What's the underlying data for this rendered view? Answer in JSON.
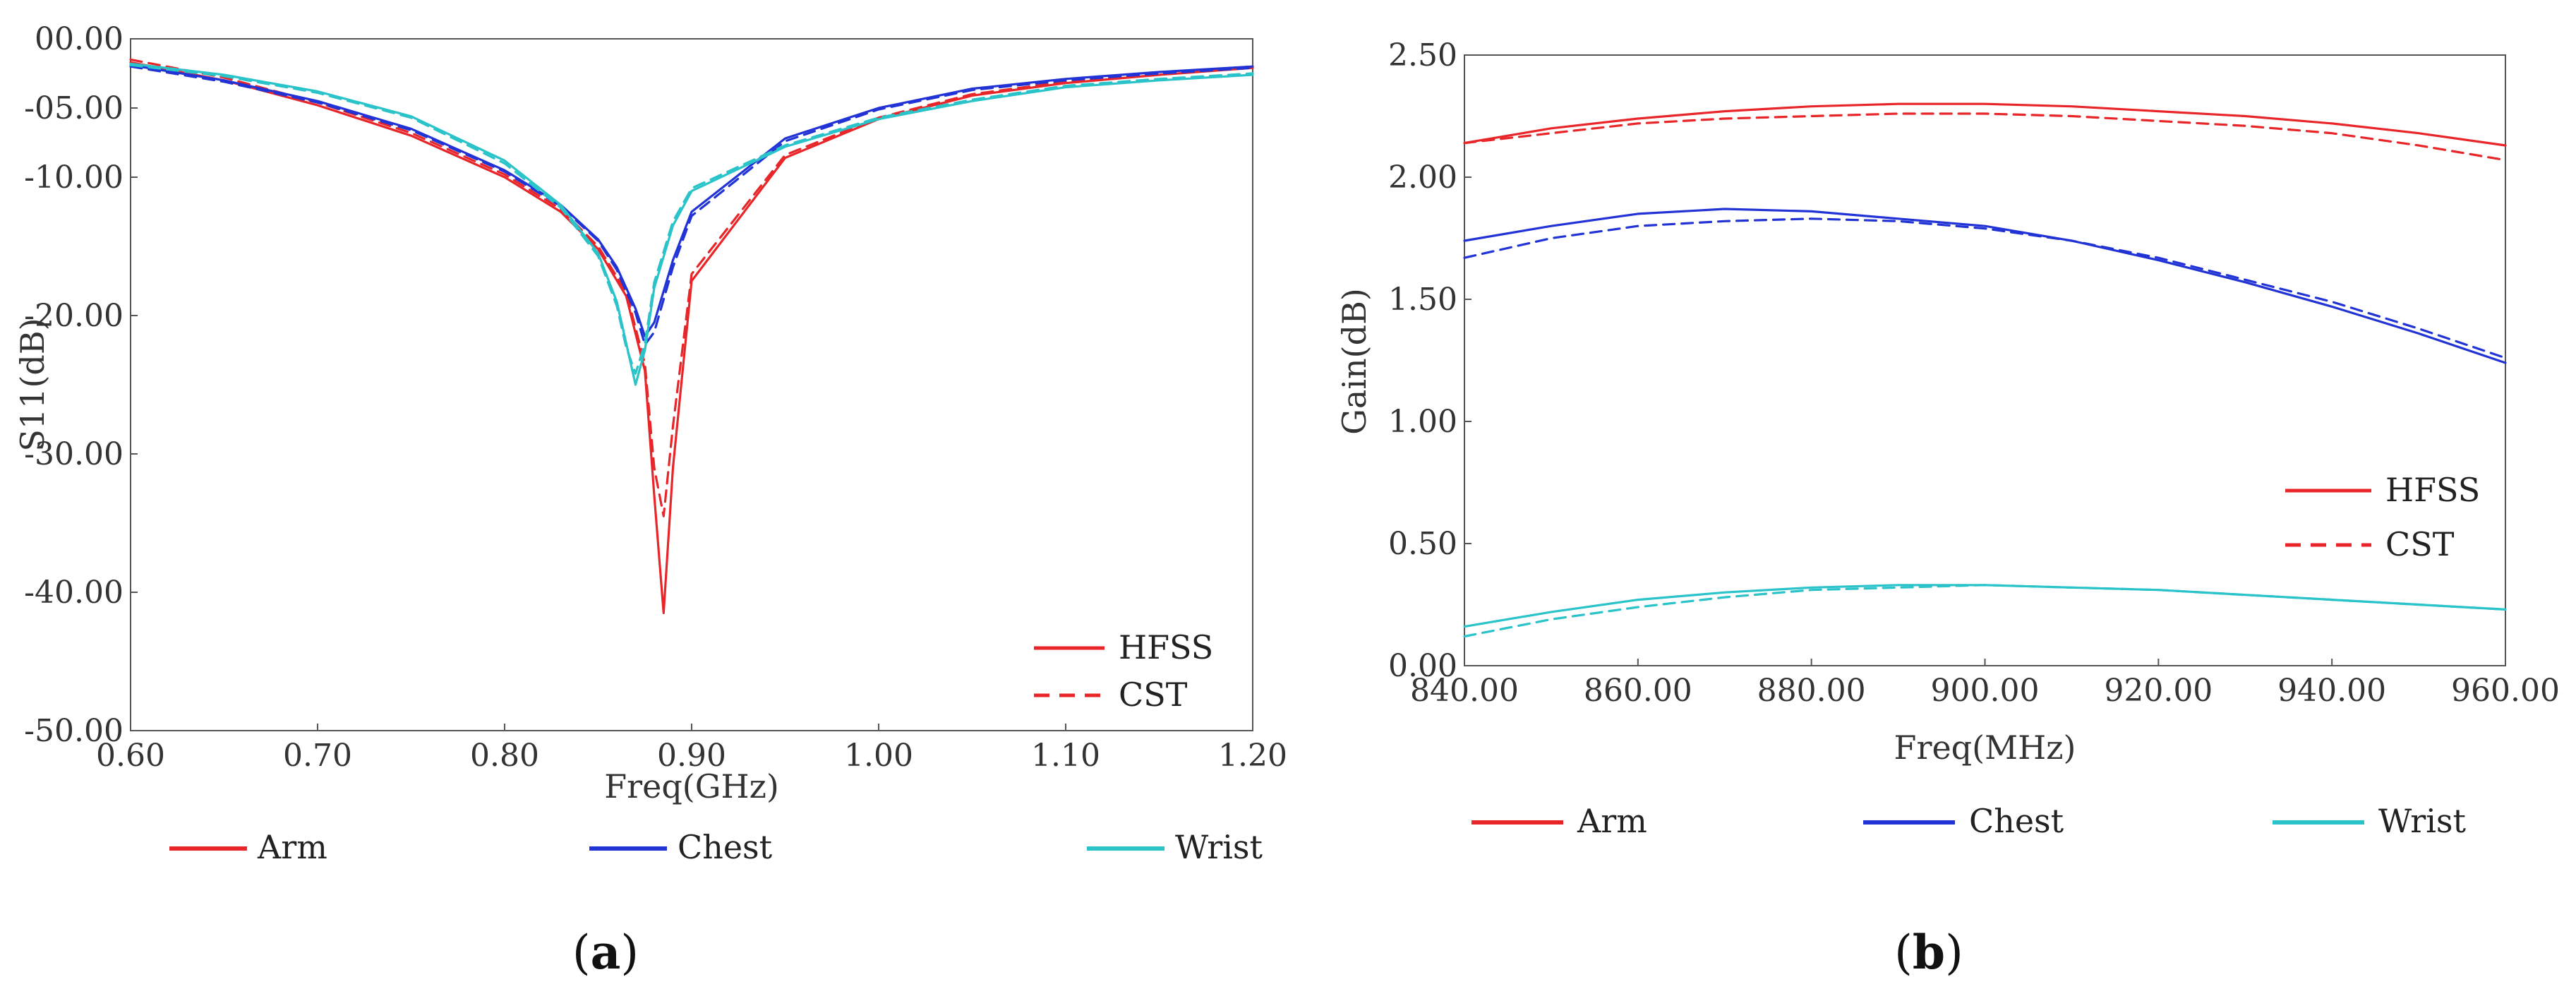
{
  "panels": [
    {
      "label": "a"
    },
    {
      "label": "b"
    }
  ],
  "styles": {
    "HFSS": "solid",
    "CST": "dashed"
  },
  "colors": {
    "Arm": "#e8262a",
    "Chest": "#2233d6",
    "Wrist": "#29c3c9",
    "axis": "#555555"
  },
  "chart_data": [
    {
      "type": "line",
      "panel": "a",
      "xlabel": "Freq(GHz)",
      "ylabel": "S11(dB)",
      "xlim": [
        0.6,
        1.2
      ],
      "ylim": [
        -50,
        0
      ],
      "xticks": [
        0.6,
        0.7,
        0.8,
        0.9,
        1.0,
        1.1,
        1.2
      ],
      "xtick_labels": [
        "0.60",
        "0.70",
        "0.80",
        "0.90",
        "1.00",
        "1.10",
        "1.20"
      ],
      "yticks": [
        0,
        -5,
        -10,
        -20,
        -30,
        -40,
        -50
      ],
      "ytick_labels": [
        "00.00",
        "-05.00",
        "-10.00",
        "-20.00",
        "-30.00",
        "-40.00",
        "-50.00"
      ],
      "style_legend": [
        "HFSS",
        "CST"
      ],
      "color_legend": [
        "Arm",
        "Chest",
        "Wrist"
      ],
      "series": [
        {
          "name": "Arm",
          "style": "HFSS",
          "x": [
            0.6,
            0.65,
            0.7,
            0.75,
            0.8,
            0.83,
            0.85,
            0.865,
            0.875,
            0.88,
            0.885,
            0.89,
            0.9,
            0.95,
            1.0,
            1.05,
            1.1,
            1.15,
            1.2
          ],
          "y": [
            -1.7,
            -3,
            -4.8,
            -7,
            -10,
            -12.5,
            -15.2,
            -18.6,
            -24,
            -33,
            -41.5,
            -31,
            -17.5,
            -8.6,
            -5.8,
            -4.1,
            -3.2,
            -2.6,
            -2.1
          ]
        },
        {
          "name": "Arm",
          "style": "CST",
          "x": [
            0.6,
            0.65,
            0.7,
            0.75,
            0.8,
            0.83,
            0.85,
            0.865,
            0.875,
            0.88,
            0.885,
            0.89,
            0.9,
            0.95,
            1.0,
            1.05,
            1.1,
            1.15,
            1.2
          ],
          "y": [
            -1.5,
            -2.8,
            -4.6,
            -6.8,
            -9.8,
            -12.3,
            -15,
            -18.3,
            -23.5,
            -31,
            -34.5,
            -28,
            -17,
            -8.4,
            -5.7,
            -4,
            -3.1,
            -2.5,
            -2
          ]
        },
        {
          "name": "Chest",
          "style": "HFSS",
          "x": [
            0.6,
            0.65,
            0.7,
            0.75,
            0.8,
            0.83,
            0.85,
            0.86,
            0.87,
            0.875,
            0.88,
            0.89,
            0.9,
            0.95,
            1.0,
            1.05,
            1.1,
            1.15,
            1.2
          ],
          "y": [
            -1.9,
            -3,
            -4.5,
            -6.5,
            -9.5,
            -12,
            -14.5,
            -16.5,
            -19.5,
            -21.5,
            -20.5,
            -16,
            -12.5,
            -7.2,
            -5,
            -3.6,
            -2.9,
            -2.4,
            -2
          ]
        },
        {
          "name": "Chest",
          "style": "CST",
          "x": [
            0.6,
            0.65,
            0.7,
            0.75,
            0.8,
            0.83,
            0.85,
            0.86,
            0.87,
            0.875,
            0.88,
            0.89,
            0.9,
            0.95,
            1.0,
            1.05,
            1.1,
            1.15,
            1.2
          ],
          "y": [
            -2,
            -3.1,
            -4.6,
            -6.6,
            -9.6,
            -12.1,
            -14.6,
            -16.7,
            -19.8,
            -22.1,
            -21.2,
            -16.5,
            -12.8,
            -7.4,
            -5.1,
            -3.7,
            -3,
            -2.5,
            -2.1
          ]
        },
        {
          "name": "Wrist",
          "style": "HFSS",
          "x": [
            0.6,
            0.65,
            0.7,
            0.75,
            0.8,
            0.83,
            0.85,
            0.86,
            0.865,
            0.87,
            0.875,
            0.88,
            0.89,
            0.9,
            0.95,
            1.0,
            1.05,
            1.1,
            1.15,
            1.2
          ],
          "y": [
            -1.8,
            -2.6,
            -3.8,
            -5.6,
            -8.8,
            -12,
            -15.5,
            -19,
            -22,
            -25,
            -22.5,
            -18,
            -13.5,
            -11,
            -7.8,
            -5.8,
            -4.5,
            -3.5,
            -3,
            -2.6
          ]
        },
        {
          "name": "Wrist",
          "style": "CST",
          "x": [
            0.6,
            0.65,
            0.7,
            0.75,
            0.8,
            0.83,
            0.85,
            0.86,
            0.865,
            0.87,
            0.875,
            0.88,
            0.89,
            0.9,
            0.95,
            1.0,
            1.05,
            1.1,
            1.15,
            1.2
          ],
          "y": [
            -1.9,
            -2.7,
            -3.9,
            -5.7,
            -9,
            -12.2,
            -15.7,
            -19.3,
            -22.3,
            -24.2,
            -22,
            -17.6,
            -13.2,
            -10.8,
            -7.7,
            -5.7,
            -4.4,
            -3.4,
            -2.9,
            -2.5
          ]
        }
      ]
    },
    {
      "type": "line",
      "panel": "b",
      "xlabel": "Freq(MHz)",
      "ylabel": "Gain(dB)",
      "xlim": [
        840,
        960
      ],
      "ylim": [
        0,
        2.5
      ],
      "xticks": [
        840,
        860,
        880,
        900,
        920,
        940,
        960
      ],
      "xtick_labels": [
        "840.00",
        "860.00",
        "880.00",
        "900.00",
        "920.00",
        "940.00",
        "960.00"
      ],
      "yticks": [
        0,
        0.5,
        1.0,
        1.5,
        2.0,
        2.5
      ],
      "ytick_labels": [
        "0.00",
        "0.50",
        "1.00",
        "1.50",
        "2.00",
        "2.50"
      ],
      "style_legend": [
        "HFSS",
        "CST"
      ],
      "color_legend": [
        "Arm",
        "Chest",
        "Wrist"
      ],
      "series": [
        {
          "name": "Arm",
          "style": "HFSS",
          "x": [
            840,
            850,
            860,
            870,
            880,
            890,
            900,
            910,
            920,
            930,
            940,
            950,
            960
          ],
          "y": [
            2.14,
            2.2,
            2.24,
            2.27,
            2.29,
            2.3,
            2.3,
            2.29,
            2.27,
            2.25,
            2.22,
            2.18,
            2.13
          ]
        },
        {
          "name": "Arm",
          "style": "CST",
          "x": [
            840,
            850,
            860,
            870,
            880,
            890,
            900,
            910,
            920,
            930,
            940,
            950,
            960
          ],
          "y": [
            2.14,
            2.18,
            2.22,
            2.24,
            2.25,
            2.26,
            2.26,
            2.25,
            2.23,
            2.21,
            2.18,
            2.13,
            2.07
          ]
        },
        {
          "name": "Chest",
          "style": "HFSS",
          "x": [
            840,
            850,
            860,
            870,
            880,
            890,
            900,
            910,
            920,
            930,
            940,
            950,
            960
          ],
          "y": [
            1.74,
            1.8,
            1.85,
            1.87,
            1.86,
            1.83,
            1.8,
            1.74,
            1.66,
            1.57,
            1.47,
            1.36,
            1.24
          ]
        },
        {
          "name": "Chest",
          "style": "CST",
          "x": [
            840,
            850,
            860,
            870,
            880,
            890,
            900,
            910,
            920,
            930,
            940,
            950,
            960
          ],
          "y": [
            1.67,
            1.75,
            1.8,
            1.82,
            1.83,
            1.82,
            1.79,
            1.74,
            1.67,
            1.58,
            1.49,
            1.38,
            1.26
          ]
        },
        {
          "name": "Wrist",
          "style": "HFSS",
          "x": [
            840,
            850,
            860,
            870,
            880,
            890,
            900,
            910,
            920,
            930,
            940,
            950,
            960
          ],
          "y": [
            0.16,
            0.22,
            0.27,
            0.3,
            0.32,
            0.33,
            0.33,
            0.32,
            0.31,
            0.29,
            0.27,
            0.25,
            0.23
          ]
        },
        {
          "name": "Wrist",
          "style": "CST",
          "x": [
            840,
            850,
            860,
            870,
            880,
            890,
            900,
            910,
            920,
            930,
            940,
            950,
            960
          ],
          "y": [
            0.12,
            0.19,
            0.24,
            0.28,
            0.31,
            0.32,
            0.33,
            0.32,
            0.31,
            0.29,
            0.27,
            0.25,
            0.23
          ]
        }
      ]
    }
  ]
}
